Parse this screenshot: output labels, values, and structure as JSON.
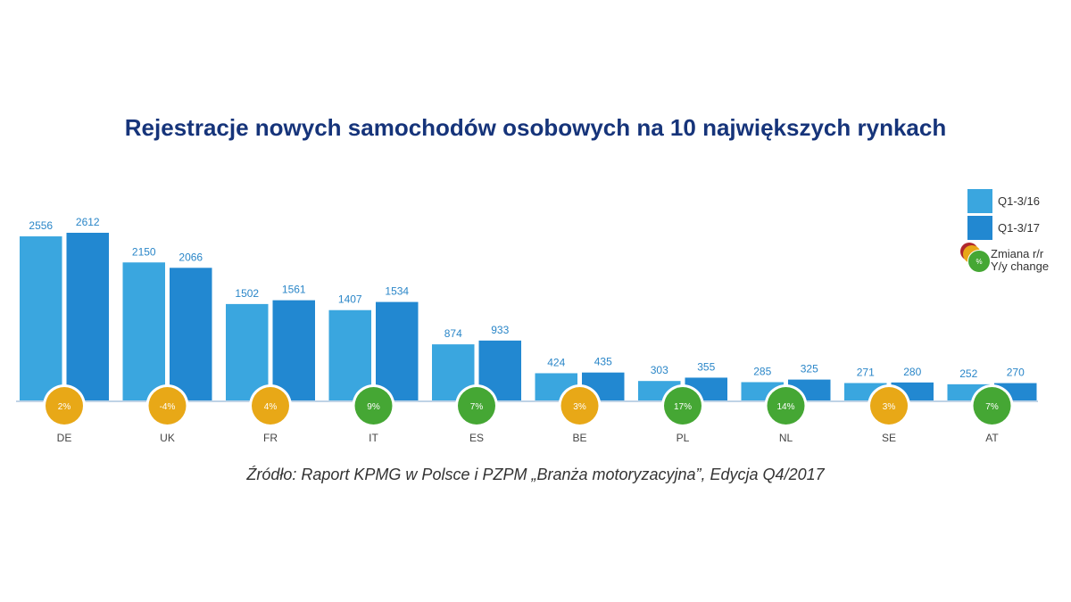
{
  "chart_data": {
    "type": "bar",
    "title": "Rejestracje nowych samochodów osobowych na 10 największych rynkach",
    "categories": [
      "DE",
      "UK",
      "FR",
      "IT",
      "ES",
      "BE",
      "PL",
      "NL",
      "SE",
      "AT"
    ],
    "series": [
      {
        "name": "Q1-3/16",
        "color": "#3aa6df",
        "values": [
          2556,
          2150,
          1502,
          1407,
          874,
          424,
          303,
          285,
          271,
          252
        ]
      },
      {
        "name": "Q1-3/17",
        "color": "#2288d1",
        "values": [
          2612,
          2066,
          1561,
          1534,
          933,
          435,
          355,
          325,
          280,
          270
        ]
      }
    ],
    "yoy_change": {
      "name": "Zmiana r/r Y/y change",
      "labels": [
        "2%",
        "-4%",
        "4%",
        "9%",
        "7%",
        "3%",
        "17%",
        "14%",
        "3%",
        "7%"
      ],
      "colors": [
        "#e8a817",
        "#e8a817",
        "#e8a817",
        "#45a734",
        "#45a734",
        "#e8a817",
        "#45a734",
        "#45a734",
        "#e8a817",
        "#45a734"
      ]
    },
    "ylim": [
      0,
      2612
    ],
    "xlabel": "",
    "ylabel": "",
    "grid": false,
    "legend_position": "top-right"
  },
  "legend": {
    "q16": "Q1-3/16",
    "q17": "Q1-3/17",
    "change_pl": "Zmiana r/r",
    "change_en": "Y/y change",
    "change_symbol": "%"
  },
  "source": "Źródło: Raport KPMG w Polsce i PZPM „Branża motoryzacyjna”, Edycja Q4/2017",
  "colors": {
    "title": "#16347a",
    "series_2016": "#3aa6df",
    "series_2017": "#2288d1",
    "axis": "#bfd3e6",
    "growth_high": "#45a734",
    "growth_low": "#e8a817",
    "decline": "#b0272d"
  }
}
